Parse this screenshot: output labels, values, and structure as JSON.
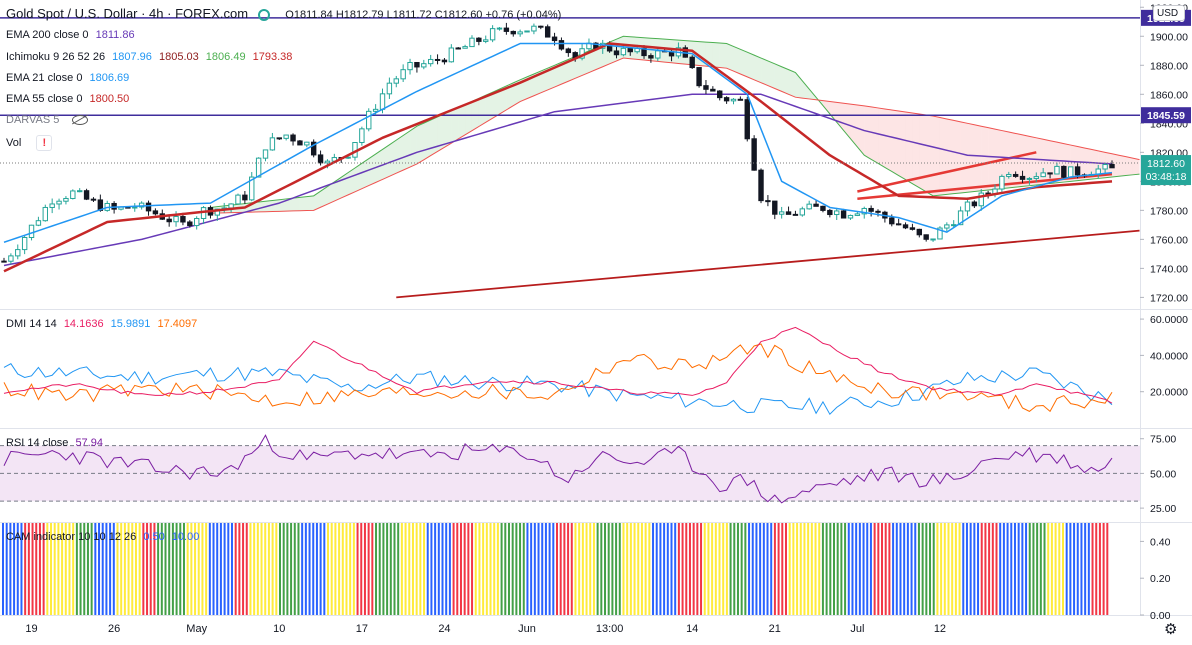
{
  "header": {
    "symbol": "Gold Spot / U.S. Dollar · 4h · FOREX.com",
    "ohlc": "O1811.84 H1812.79 L1811.72 C1812.60 +0.76 (+0.04%)"
  },
  "currency": "USD",
  "colors": {
    "up": "#26a69a",
    "down": "#131722",
    "ema200": "#673ab7",
    "ema55": "#c62828",
    "ema21": "#2196f3",
    "ichi_tenkan": "#2196f3",
    "ichi_kijun": "#8d1c1c",
    "ichi_span_a": "#4caf50",
    "ichi_span_b": "#ef5350",
    "trendline": "#b71c1c",
    "wedge": "#e53935",
    "hline": "#3f2d9c",
    "dmi_plus": "#2196f3",
    "dmi_minus": "#ff6d00",
    "adx": "#e91e63",
    "rsi": "#7b1fa2",
    "rsi_band": "#e1bee7"
  },
  "legend": {
    "ema200": {
      "label": "EMA 200 close 0",
      "v": "1811.86"
    },
    "ichimoku": {
      "label": "Ichimoku 9 26 52 26",
      "v1": "1807.96",
      "v2": "1805.03",
      "v3": "1806.49",
      "v4": "1793.38"
    },
    "ema21": {
      "label": "EMA 21 close 0",
      "v": "1806.69"
    },
    "ema55": {
      "label": "EMA 55 close 0",
      "v": "1800.50"
    },
    "darvas": {
      "label": "DARVAS 5"
    },
    "vol": {
      "label": "Vol",
      "alert": "!"
    },
    "dmi": {
      "label": "DMI 14 14",
      "v1": "14.1636",
      "v2": "15.9891",
      "v3": "17.4097"
    },
    "rsi": {
      "label": "RSI 14 close",
      "v": "57.94"
    },
    "cam": {
      "label": "CAM indicator 10 10 12 26",
      "v1": "0.50",
      "v2": "10.00"
    }
  },
  "chart_data": [
    {
      "type": "candlestick",
      "pane": "price",
      "ylim": [
        1712,
        1925
      ],
      "yticks": [
        "1920.00",
        "1900.00",
        "1880.00",
        "1860.00",
        "1840.00",
        "1820.00",
        "1800.00",
        "1780.00",
        "1760.00",
        "1740.00",
        "1720.00"
      ],
      "ytick_values": [
        1920,
        1900,
        1880,
        1860,
        1840,
        1820,
        1800,
        1780,
        1760,
        1740,
        1720
      ],
      "xticks": [
        "19",
        "26",
        "May",
        "10",
        "17",
        "24",
        "Jun",
        "13:00",
        "14",
        "21",
        "Jul",
        "12"
      ],
      "xtick_index": [
        4,
        16,
        28,
        40,
        52,
        64,
        76,
        88,
        100,
        112,
        124,
        136
      ],
      "close_path": [
        [
          0,
          1745
        ],
        [
          3,
          1762
        ],
        [
          7,
          1788
        ],
        [
          10,
          1792
        ],
        [
          13,
          1785
        ],
        [
          16,
          1780
        ],
        [
          19,
          1783
        ],
        [
          22,
          1778
        ],
        [
          26,
          1770
        ],
        [
          29,
          1780
        ],
        [
          32,
          1782
        ],
        [
          35,
          1790
        ],
        [
          38,
          1825
        ],
        [
          41,
          1832
        ],
        [
          44,
          1826
        ],
        [
          47,
          1812
        ],
        [
          50,
          1820
        ],
        [
          53,
          1845
        ],
        [
          56,
          1868
        ],
        [
          59,
          1878
        ],
        [
          62,
          1882
        ],
        [
          65,
          1888
        ],
        [
          68,
          1895
        ],
        [
          71,
          1902
        ],
        [
          74,
          1905
        ],
        [
          77,
          1905
        ],
        [
          80,
          1900
        ],
        [
          83,
          1885
        ],
        [
          86,
          1895
        ],
        [
          89,
          1890
        ],
        [
          92,
          1888
        ],
        [
          95,
          1888
        ],
        [
          98,
          1890
        ],
        [
          101,
          1868
        ],
        [
          104,
          1858
        ],
        [
          107,
          1855
        ],
        [
          110,
          1790
        ],
        [
          113,
          1775
        ],
        [
          116,
          1780
        ],
        [
          119,
          1782
        ],
        [
          122,
          1778
        ],
        [
          125,
          1782
        ],
        [
          128,
          1775
        ],
        [
          131,
          1768
        ],
        [
          134,
          1758
        ],
        [
          137,
          1770
        ],
        [
          140,
          1782
        ],
        [
          143,
          1792
        ],
        [
          146,
          1808
        ],
        [
          149,
          1804
        ],
        [
          152,
          1808
        ],
        [
          155,
          1806
        ],
        [
          158,
          1808
        ],
        [
          161,
          1808
        ]
      ],
      "hlines": [
        {
          "label": "1912.69",
          "value": 1912.69
        },
        {
          "label": "1845.59",
          "value": 1845.59
        }
      ],
      "last_price": {
        "label": "1812.60",
        "value": 1812.6,
        "countdown": "03:48:18"
      },
      "ema200": [
        [
          0,
          1742
        ],
        [
          20,
          1760
        ],
        [
          40,
          1785
        ],
        [
          60,
          1820
        ],
        [
          80,
          1848
        ],
        [
          100,
          1860
        ],
        [
          110,
          1860
        ],
        [
          125,
          1835
        ],
        [
          140,
          1818
        ],
        [
          161,
          1812
        ]
      ],
      "ema55": [
        [
          0,
          1738
        ],
        [
          15,
          1772
        ],
        [
          35,
          1782
        ],
        [
          55,
          1830
        ],
        [
          75,
          1868
        ],
        [
          88,
          1895
        ],
        [
          100,
          1890
        ],
        [
          110,
          1855
        ],
        [
          120,
          1818
        ],
        [
          130,
          1790
        ],
        [
          140,
          1788
        ],
        [
          150,
          1796
        ],
        [
          161,
          1800
        ]
      ],
      "ema21": [
        [
          0,
          1758
        ],
        [
          15,
          1782
        ],
        [
          30,
          1785
        ],
        [
          45,
          1825
        ],
        [
          60,
          1862
        ],
        [
          75,
          1895
        ],
        [
          85,
          1895
        ],
        [
          100,
          1888
        ],
        [
          108,
          1860
        ],
        [
          113,
          1800
        ],
        [
          120,
          1782
        ],
        [
          130,
          1775
        ],
        [
          137,
          1765
        ],
        [
          145,
          1790
        ],
        [
          155,
          1803
        ],
        [
          161,
          1806
        ]
      ],
      "kumo_a": [
        [
          30,
          1782
        ],
        [
          45,
          1790
        ],
        [
          60,
          1838
        ],
        [
          75,
          1870
        ],
        [
          90,
          1900
        ],
        [
          105,
          1895
        ],
        [
          115,
          1875
        ],
        [
          125,
          1818
        ],
        [
          135,
          1790
        ],
        [
          145,
          1795
        ],
        [
          155,
          1800
        ],
        [
          165,
          1805
        ]
      ],
      "kumo_b": [
        [
          30,
          1778
        ],
        [
          45,
          1780
        ],
        [
          60,
          1812
        ],
        [
          75,
          1855
        ],
        [
          90,
          1885
        ],
        [
          105,
          1878
        ],
        [
          115,
          1858
        ],
        [
          125,
          1852
        ],
        [
          135,
          1845
        ],
        [
          145,
          1835
        ],
        [
          155,
          1825
        ],
        [
          165,
          1815
        ]
      ],
      "trendline": [
        [
          57,
          1720
        ],
        [
          165,
          1766
        ]
      ],
      "wedge_upper": [
        [
          124,
          1793
        ],
        [
          150,
          1820
        ]
      ],
      "wedge_lower": [
        [
          124,
          1788
        ],
        [
          161,
          1805
        ]
      ]
    },
    {
      "type": "line",
      "pane": "dmi",
      "ylim": [
        0,
        65
      ],
      "yticks": [
        "60.0000",
        "40.0000",
        "20.0000"
      ],
      "ytick_values": [
        60,
        40,
        20
      ],
      "series": [
        {
          "name": "DI+",
          "values": [
            [
              0,
              32
            ],
            [
              10,
              30
            ],
            [
              20,
              28
            ],
            [
              30,
              30
            ],
            [
              40,
              30
            ],
            [
              50,
              22
            ],
            [
              60,
              28
            ],
            [
              70,
              25
            ],
            [
              80,
              24
            ],
            [
              90,
              18
            ],
            [
              100,
              15
            ],
            [
              110,
              12
            ],
            [
              120,
              12
            ],
            [
              130,
              16
            ],
            [
              140,
              27
            ],
            [
              150,
              30
            ],
            [
              161,
              15
            ]
          ]
        },
        {
          "name": "DI-",
          "values": [
            [
              0,
              22
            ],
            [
              10,
              17
            ],
            [
              20,
              22
            ],
            [
              30,
              20
            ],
            [
              40,
              15
            ],
            [
              50,
              18
            ],
            [
              60,
              20
            ],
            [
              70,
              20
            ],
            [
              80,
              18
            ],
            [
              90,
              38
            ],
            [
              100,
              34
            ],
            [
              110,
              45
            ],
            [
              120,
              28
            ],
            [
              130,
              20
            ],
            [
              140,
              18
            ],
            [
              150,
              12
            ],
            [
              161,
              17
            ]
          ]
        },
        {
          "name": "ADX",
          "values": [
            [
              0,
              20
            ],
            [
              10,
              24
            ],
            [
              20,
              18
            ],
            [
              30,
              20
            ],
            [
              40,
              26
            ],
            [
              45,
              48
            ],
            [
              50,
              38
            ],
            [
              60,
              20
            ],
            [
              70,
              26
            ],
            [
              80,
              25
            ],
            [
              90,
              20
            ],
            [
              100,
              18
            ],
            [
              105,
              25
            ],
            [
              110,
              48
            ],
            [
              115,
              55
            ],
            [
              120,
              45
            ],
            [
              128,
              30
            ],
            [
              135,
              22
            ],
            [
              145,
              18
            ],
            [
              150,
              25
            ],
            [
              161,
              14
            ]
          ]
        }
      ]
    },
    {
      "type": "line",
      "pane": "rsi",
      "ylim": [
        15,
        82
      ],
      "yticks": [
        "75.00",
        "50.00",
        "25.00"
      ],
      "ytick_values": [
        75,
        50,
        25
      ],
      "band": [
        30,
        70
      ],
      "series": [
        {
          "name": "RSI",
          "values": [
            [
              0,
              60
            ],
            [
              8,
              65
            ],
            [
              16,
              58
            ],
            [
              24,
              52
            ],
            [
              32,
              50
            ],
            [
              38,
              72
            ],
            [
              44,
              60
            ],
            [
              52,
              65
            ],
            [
              60,
              62
            ],
            [
              68,
              66
            ],
            [
              76,
              65
            ],
            [
              82,
              45
            ],
            [
              86,
              62
            ],
            [
              92,
              58
            ],
            [
              98,
              64
            ],
            [
              104,
              42
            ],
            [
              108,
              45
            ],
            [
              112,
              30
            ],
            [
              116,
              36
            ],
            [
              120,
              42
            ],
            [
              128,
              50
            ],
            [
              134,
              45
            ],
            [
              138,
              45
            ],
            [
              142,
              58
            ],
            [
              148,
              65
            ],
            [
              154,
              60
            ],
            [
              158,
              52
            ],
            [
              161,
              58
            ]
          ]
        }
      ]
    },
    {
      "type": "bar",
      "pane": "cam",
      "ylim": [
        0,
        0.5
      ],
      "yticks": [
        "0.40",
        "0.20",
        "0.00"
      ],
      "ytick_values": [
        0.4,
        0.2,
        0.0
      ],
      "bar_value": 0.5,
      "bar_colors": "BBBBRRRRYYYYYYGGGGBBBBYYYYYRRRGGGGGGYYYYBBBBBRRRYYYYYYGGGGBBBBBYYYYYYRRRRGGGGGYYYYYBBBBBRRRRYYYYYGGGGGBBBBBBRRRRYYYYGGGGGYYYYYYBBBBBRRRRRYYYYYGGGGBBBBBRRRYYYYYYGGGGGBBBBBRRRRBBBBBGGGGYYYYYBBBRRRRBBBBBBGGGYYYYBBBBBRRRR"
    }
  ]
}
